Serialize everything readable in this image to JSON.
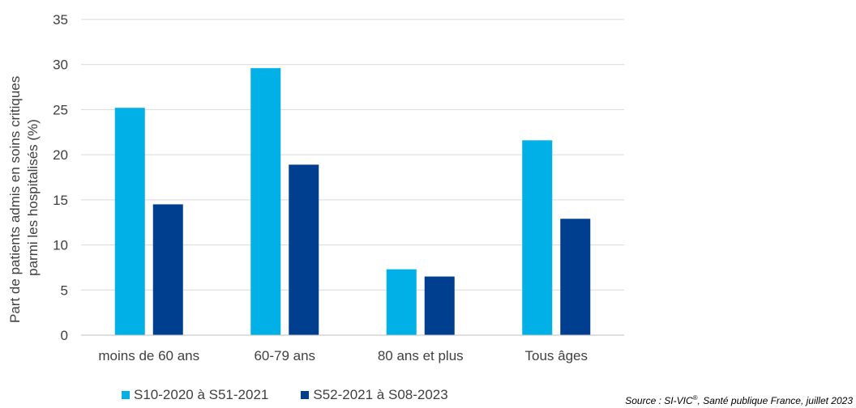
{
  "chart_data": {
    "type": "bar",
    "categories": [
      "moins de 60 ans",
      "60-79 ans",
      "80 ans et plus",
      "Tous âges"
    ],
    "series": [
      {
        "name": "S10-2020 à S51-2021",
        "values": [
          25.2,
          29.6,
          7.3,
          21.6
        ],
        "color": "#00B0E6"
      },
      {
        "name": "S52-2021 à S08-2023",
        "values": [
          14.5,
          18.9,
          6.5,
          12.9
        ],
        "color": "#003F8F"
      }
    ],
    "ylabel_lines": [
      "Part de patients admis en soins critiques",
      "parmi les hospitalisés (%)"
    ],
    "ylim": [
      0,
      35
    ],
    "yticks": [
      0,
      5,
      10,
      15,
      20,
      25,
      30,
      35
    ],
    "grid": true,
    "legend_position": "bottom"
  },
  "source": {
    "text": "Source : SI-VIC",
    "sup": "®",
    "rest": ", Santé publique France, juillet 2023"
  }
}
